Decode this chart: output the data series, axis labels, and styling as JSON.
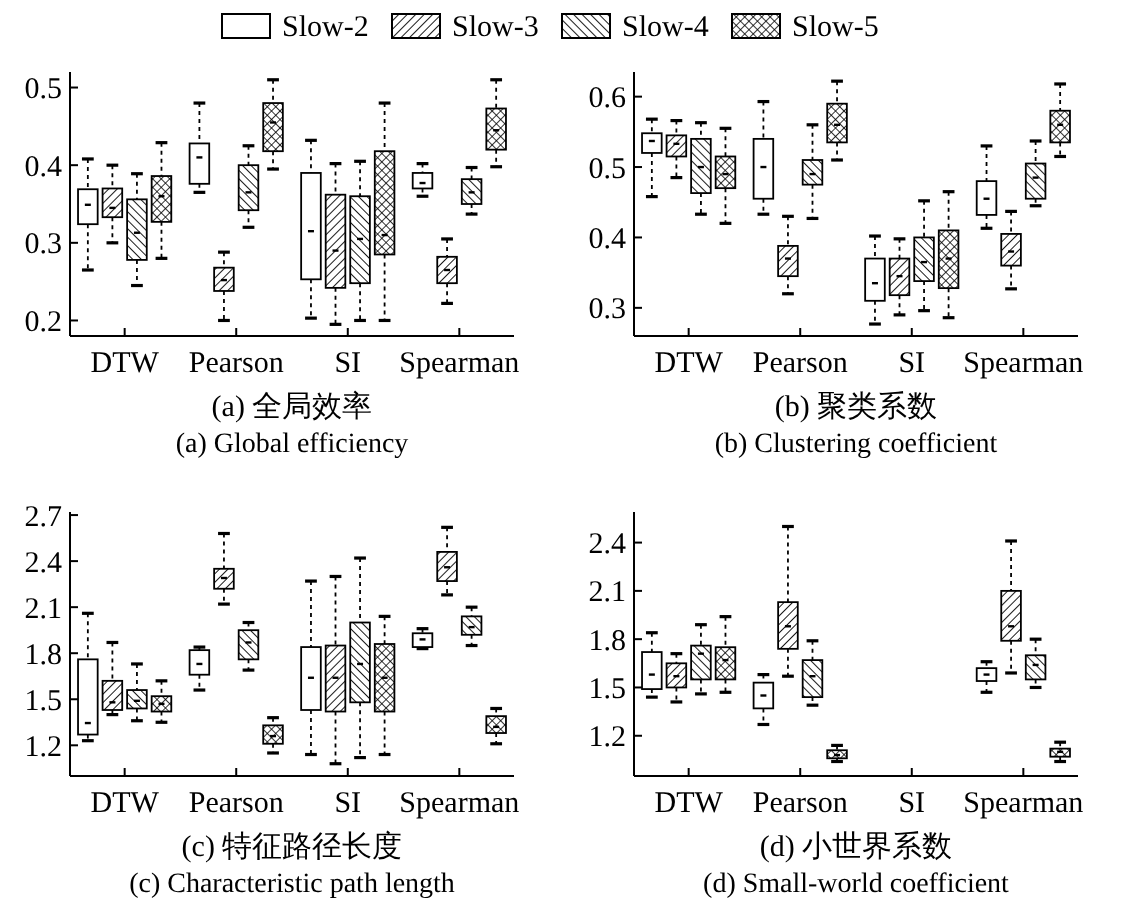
{
  "chart_data": [
    {
      "type": "box",
      "title": "(a) 全局效率",
      "subtitle": "(a) Global efficiency",
      "categories": [
        "DTW",
        "Pearson",
        "SI",
        "Spearman"
      ],
      "ylim": [
        0.18,
        0.52
      ],
      "yticks": [
        0.2,
        0.3,
        0.4,
        0.5
      ],
      "legend": "top",
      "series": [
        {
          "name": "Slow-2",
          "color": "#000000",
          "boxes": [
            {
              "low": 0.265,
              "q1": 0.324,
              "median": 0.349,
              "q3": 0.369,
              "high": 0.408
            },
            {
              "low": 0.365,
              "q1": 0.376,
              "median": 0.41,
              "q3": 0.428,
              "high": 0.48
            },
            {
              "low": 0.203,
              "q1": 0.253,
              "median": 0.315,
              "q3": 0.39,
              "high": 0.432
            },
            {
              "low": 0.36,
              "q1": 0.37,
              "median": 0.377,
              "q3": 0.39,
              "high": 0.402
            }
          ]
        },
        {
          "name": "Slow-3",
          "color": "#000000",
          "boxes": [
            {
              "low": 0.3,
              "q1": 0.333,
              "median": 0.345,
              "q3": 0.37,
              "high": 0.4
            },
            {
              "low": 0.2,
              "q1": 0.238,
              "median": 0.252,
              "q3": 0.268,
              "high": 0.288
            },
            {
              "low": 0.195,
              "q1": 0.242,
              "median": 0.29,
              "q3": 0.362,
              "high": 0.402
            },
            {
              "low": 0.222,
              "q1": 0.248,
              "median": 0.265,
              "q3": 0.282,
              "high": 0.305
            }
          ]
        },
        {
          "name": "Slow-4",
          "color": "#000000",
          "boxes": [
            {
              "low": 0.245,
              "q1": 0.278,
              "median": 0.313,
              "q3": 0.356,
              "high": 0.389
            },
            {
              "low": 0.32,
              "q1": 0.342,
              "median": 0.365,
              "q3": 0.4,
              "high": 0.425
            },
            {
              "low": 0.2,
              "q1": 0.248,
              "median": 0.305,
              "q3": 0.36,
              "high": 0.405
            },
            {
              "low": 0.337,
              "q1": 0.35,
              "median": 0.365,
              "q3": 0.382,
              "high": 0.397
            }
          ]
        },
        {
          "name": "Slow-5",
          "color": "#000000",
          "boxes": [
            {
              "low": 0.28,
              "q1": 0.327,
              "median": 0.36,
              "q3": 0.386,
              "high": 0.429
            },
            {
              "low": 0.395,
              "q1": 0.418,
              "median": 0.455,
              "q3": 0.48,
              "high": 0.51
            },
            {
              "low": 0.2,
              "q1": 0.285,
              "median": 0.31,
              "q3": 0.418,
              "high": 0.48
            },
            {
              "low": 0.398,
              "q1": 0.42,
              "median": 0.445,
              "q3": 0.473,
              "high": 0.51
            }
          ]
        }
      ]
    },
    {
      "type": "box",
      "title": "(b) 聚类系数",
      "subtitle": "(b) Clustering coefficient",
      "categories": [
        "DTW",
        "Pearson",
        "SI",
        "Spearman"
      ],
      "ylim": [
        0.26,
        0.635
      ],
      "yticks": [
        0.3,
        0.4,
        0.5,
        0.6
      ],
      "series": [
        {
          "color": "#000000",
          "boxes": [
            {
              "low": 0.458,
              "q1": 0.52,
              "median": 0.537,
              "q3": 0.548,
              "high": 0.568
            },
            {
              "low": 0.433,
              "q1": 0.455,
              "median": 0.5,
              "q3": 0.54,
              "high": 0.593
            },
            {
              "low": 0.277,
              "q1": 0.31,
              "median": 0.335,
              "q3": 0.37,
              "high": 0.402
            },
            {
              "low": 0.413,
              "q1": 0.432,
              "median": 0.455,
              "q3": 0.48,
              "high": 0.53
            }
          ]
        },
        {
          "color": "#000000",
          "boxes": [
            {
              "low": 0.485,
              "q1": 0.515,
              "median": 0.533,
              "q3": 0.545,
              "high": 0.566
            },
            {
              "low": 0.32,
              "q1": 0.345,
              "median": 0.37,
              "q3": 0.388,
              "high": 0.43
            },
            {
              "low": 0.29,
              "q1": 0.318,
              "median": 0.345,
              "q3": 0.37,
              "high": 0.398
            },
            {
              "low": 0.327,
              "q1": 0.36,
              "median": 0.38,
              "q3": 0.405,
              "high": 0.437
            }
          ]
        },
        {
          "color": "#000000",
          "boxes": [
            {
              "low": 0.433,
              "q1": 0.463,
              "median": 0.5,
              "q3": 0.54,
              "high": 0.563
            },
            {
              "low": 0.427,
              "q1": 0.475,
              "median": 0.49,
              "q3": 0.51,
              "high": 0.56
            },
            {
              "low": 0.296,
              "q1": 0.338,
              "median": 0.365,
              "q3": 0.4,
              "high": 0.452
            },
            {
              "low": 0.445,
              "q1": 0.455,
              "median": 0.485,
              "q3": 0.505,
              "high": 0.537
            }
          ]
        },
        {
          "color": "#000000",
          "boxes": [
            {
              "low": 0.42,
              "q1": 0.47,
              "median": 0.49,
              "q3": 0.515,
              "high": 0.555
            },
            {
              "low": 0.51,
              "q1": 0.535,
              "median": 0.56,
              "q3": 0.59,
              "high": 0.622
            },
            {
              "low": 0.286,
              "q1": 0.328,
              "median": 0.37,
              "q3": 0.41,
              "high": 0.465
            },
            {
              "low": 0.515,
              "q1": 0.535,
              "median": 0.56,
              "q3": 0.58,
              "high": 0.618
            }
          ]
        }
      ]
    },
    {
      "type": "box",
      "title": "(c) 特征路径长度",
      "subtitle": "(c) Characteristic path length",
      "categories": [
        "DTW",
        "Pearson",
        "SI",
        "Spearman"
      ],
      "ylim": [
        1.0,
        2.72
      ],
      "yticks": [
        1.2,
        1.5,
        1.8,
        2.1,
        2.4,
        2.7
      ],
      "series": [
        {
          "color": "#000000",
          "boxes": [
            {
              "low": 1.23,
              "q1": 1.27,
              "median": 1.345,
              "q3": 1.76,
              "high": 2.06
            },
            {
              "low": 1.56,
              "q1": 1.66,
              "median": 1.73,
              "q3": 1.82,
              "high": 1.84
            },
            {
              "low": 1.14,
              "q1": 1.43,
              "median": 1.64,
              "q3": 1.84,
              "high": 2.27
            },
            {
              "low": 1.83,
              "q1": 1.84,
              "median": 1.89,
              "q3": 1.93,
              "high": 1.96
            }
          ]
        },
        {
          "color": "#000000",
          "boxes": [
            {
              "low": 1.4,
              "q1": 1.43,
              "median": 1.48,
              "q3": 1.62,
              "high": 1.87
            },
            {
              "low": 2.12,
              "q1": 2.22,
              "median": 2.29,
              "q3": 2.35,
              "high": 2.58
            },
            {
              "low": 1.08,
              "q1": 1.42,
              "median": 1.64,
              "q3": 1.85,
              "high": 2.3
            },
            {
              "low": 2.18,
              "q1": 2.27,
              "median": 2.36,
              "q3": 2.46,
              "high": 2.62
            }
          ]
        },
        {
          "color": "#000000",
          "boxes": [
            {
              "low": 1.36,
              "q1": 1.44,
              "median": 1.49,
              "q3": 1.56,
              "high": 1.73
            },
            {
              "low": 1.69,
              "q1": 1.76,
              "median": 1.87,
              "q3": 1.95,
              "high": 2.0
            },
            {
              "low": 1.12,
              "q1": 1.48,
              "median": 1.73,
              "q3": 2.0,
              "high": 2.42
            },
            {
              "low": 1.85,
              "q1": 1.92,
              "median": 1.97,
              "q3": 2.04,
              "high": 2.1
            }
          ]
        },
        {
          "color": "#000000",
          "boxes": [
            {
              "low": 1.35,
              "q1": 1.42,
              "median": 1.47,
              "q3": 1.52,
              "high": 1.62
            },
            {
              "low": 1.15,
              "q1": 1.21,
              "median": 1.26,
              "q3": 1.33,
              "high": 1.38
            },
            {
              "low": 1.14,
              "q1": 1.42,
              "median": 1.64,
              "q3": 1.86,
              "high": 2.04
            },
            {
              "low": 1.21,
              "q1": 1.28,
              "median": 1.32,
              "q3": 1.39,
              "high": 1.44
            }
          ]
        }
      ]
    },
    {
      "type": "box",
      "title": "(d) 小世界系数",
      "subtitle": "(d) Small-world coefficient",
      "categories": [
        "DTW",
        "Pearson",
        "SI",
        "Spearman"
      ],
      "ylim": [
        0.95,
        2.59
      ],
      "yticks": [
        1.2,
        1.5,
        1.8,
        2.1,
        2.4
      ],
      "series": [
        {
          "color": "#000000",
          "boxes": [
            {
              "low": 1.44,
              "q1": 1.49,
              "median": 1.58,
              "q3": 1.72,
              "high": 1.84
            },
            {
              "low": 1.27,
              "q1": 1.37,
              "median": 1.45,
              "q3": 1.53,
              "high": 1.58
            },
            null,
            {
              "low": 1.47,
              "q1": 1.54,
              "median": 1.58,
              "q3": 1.62,
              "high": 1.66
            }
          ]
        },
        {
          "color": "#000000",
          "boxes": [
            {
              "low": 1.41,
              "q1": 1.5,
              "median": 1.57,
              "q3": 1.65,
              "high": 1.71
            },
            {
              "low": 1.57,
              "q1": 1.74,
              "median": 1.88,
              "q3": 2.03,
              "high": 2.5
            },
            null,
            {
              "low": 1.59,
              "q1": 1.79,
              "median": 1.88,
              "q3": 2.1,
              "high": 2.41
            }
          ]
        },
        {
          "color": "#000000",
          "boxes": [
            {
              "low": 1.46,
              "q1": 1.55,
              "median": 1.71,
              "q3": 1.76,
              "high": 1.89
            },
            {
              "low": 1.39,
              "q1": 1.44,
              "median": 1.57,
              "q3": 1.67,
              "high": 1.79
            },
            null,
            {
              "low": 1.5,
              "q1": 1.55,
              "median": 1.64,
              "q3": 1.7,
              "high": 1.8
            }
          ]
        },
        {
          "color": "#000000",
          "boxes": [
            {
              "low": 1.47,
              "q1": 1.55,
              "median": 1.67,
              "q3": 1.75,
              "high": 1.94
            },
            {
              "low": 1.04,
              "q1": 1.06,
              "median": 1.08,
              "q3": 1.11,
              "high": 1.14
            },
            null,
            {
              "low": 1.04,
              "q1": 1.07,
              "median": 1.1,
              "q3": 1.12,
              "high": 1.16
            }
          ]
        }
      ]
    }
  ]
}
